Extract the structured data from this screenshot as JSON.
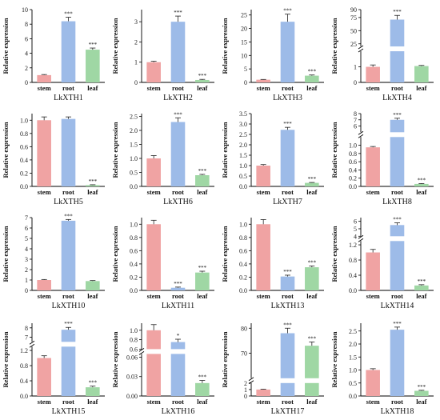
{
  "colors": {
    "stem": "#f0a3a3",
    "root": "#9dbbe8",
    "leaf": "#9fd7a4",
    "axis": "#000000"
  },
  "chart_data": [
    {
      "type": "bar",
      "title": "LkXTH1",
      "ylabel": "Relative expression",
      "categories": [
        "stem",
        "root",
        "leaf"
      ],
      "values": [
        1,
        8.4,
        4.5
      ],
      "errors": [
        0.08,
        0.55,
        0.22
      ],
      "significance": [
        "",
        "***",
        "***"
      ],
      "ylim": [
        0,
        10
      ],
      "yticks": [
        "0",
        "2",
        "4",
        "6",
        "8",
        "10"
      ],
      "tickvals": [
        0,
        2,
        4,
        6,
        8,
        10
      ]
    },
    {
      "type": "bar",
      "title": "LkXTH2",
      "ylabel": "Relative expression",
      "categories": [
        "stem",
        "root",
        "leaf"
      ],
      "values": [
        1,
        3.0,
        0.12
      ],
      "errors": [
        0.05,
        0.28,
        0.03
      ],
      "significance": [
        "",
        "***",
        "***"
      ],
      "ylim": [
        0,
        3.6
      ],
      "yticks": [
        "0",
        "1",
        "2",
        "3"
      ],
      "tickvals": [
        0,
        1,
        2,
        3
      ]
    },
    {
      "type": "bar",
      "title": "LkXTH3",
      "ylabel": "Relative expression",
      "categories": [
        "stem",
        "root",
        "leaf"
      ],
      "values": [
        1,
        22.5,
        2.5
      ],
      "errors": [
        0.1,
        2.8,
        0.25
      ],
      "significance": [
        "",
        "***",
        "***"
      ],
      "ylim": [
        0,
        27
      ],
      "yticks": [
        "0",
        "5",
        "10",
        "15",
        "20",
        "25"
      ],
      "tickvals": [
        0,
        5,
        10,
        15,
        20,
        25
      ]
    },
    {
      "type": "bar",
      "title": "LkXTH4",
      "ylabel": "Relative expression",
      "categories": [
        "stem",
        "root",
        "leaf"
      ],
      "values": [
        1,
        71,
        1.05
      ],
      "errors": [
        0.12,
        8,
        0.04
      ],
      "significance": [
        "",
        "***",
        ""
      ],
      "broken_axis": {
        "lower": [
          0,
          2
        ],
        "upper": [
          20,
          90
        ],
        "split": 0.45
      },
      "yticks": [
        "0",
        "1",
        "25",
        "50",
        "75",
        "90"
      ],
      "tickvals": [
        0,
        1,
        25,
        50,
        75,
        90
      ]
    },
    {
      "type": "bar",
      "title": "LkXTH5",
      "ylabel": "Relative expression",
      "categories": [
        "stem",
        "root",
        "leaf"
      ],
      "values": [
        1.0,
        1.02,
        0.02
      ],
      "errors": [
        0.05,
        0.03,
        0.005
      ],
      "significance": [
        "",
        "",
        "***"
      ],
      "ylim": [
        0,
        1.1
      ],
      "yticks": [
        "0.0",
        "0.2",
        "0.4",
        "0.6",
        "0.8",
        "1.0"
      ],
      "tickvals": [
        0,
        0.2,
        0.4,
        0.6,
        0.8,
        1.0
      ]
    },
    {
      "type": "bar",
      "title": "LkXTH6",
      "ylabel": "Relative expression",
      "categories": [
        "stem",
        "root",
        "leaf"
      ],
      "values": [
        1,
        2.3,
        0.4
      ],
      "errors": [
        0.1,
        0.15,
        0.03
      ],
      "significance": [
        "",
        "***",
        "***"
      ],
      "ylim": [
        0,
        2.6
      ],
      "yticks": [
        "0.0",
        "0.5",
        "1.0",
        "1.5",
        "2.0",
        "2.5"
      ],
      "tickvals": [
        0,
        0.5,
        1.0,
        1.5,
        2.0,
        2.5
      ]
    },
    {
      "type": "bar",
      "title": "LkXTH7",
      "ylabel": "Relative expression",
      "categories": [
        "stem",
        "root",
        "leaf"
      ],
      "values": [
        1,
        2.72,
        0.17
      ],
      "errors": [
        0.05,
        0.12,
        0.02
      ],
      "significance": [
        "",
        "***",
        "***"
      ],
      "ylim": [
        0,
        3.5
      ],
      "yticks": [
        "0.0",
        "0.5",
        "1.0",
        "1.5",
        "2.0",
        "2.5",
        "3.0",
        "3.5"
      ],
      "tickvals": [
        0,
        0.5,
        1.0,
        1.5,
        2.0,
        2.5,
        3.0,
        3.5
      ]
    },
    {
      "type": "bar",
      "title": "LkXTH8",
      "ylabel": "Relative expression",
      "categories": [
        "stem",
        "root",
        "leaf"
      ],
      "values": [
        0.95,
        7.0,
        0.06
      ],
      "errors": [
        0.02,
        0.25,
        0.01
      ],
      "significance": [
        "",
        "***",
        "***"
      ],
      "broken_axis": {
        "lower": [
          0,
          1.2
        ],
        "upper": [
          5,
          8
        ],
        "split": 0.7
      },
      "yticks": [
        "0.0",
        "0.2",
        "0.4",
        "0.6",
        "0.8",
        "1.0",
        "6",
        "7",
        "8"
      ],
      "tickvals": [
        0,
        0.2,
        0.4,
        0.6,
        0.8,
        1.0,
        6,
        7,
        8
      ]
    },
    {
      "type": "bar",
      "title": "LkXTH10",
      "ylabel": "Relative expression",
      "categories": [
        "stem",
        "root",
        "leaf"
      ],
      "values": [
        1,
        6.7,
        0.9
      ],
      "errors": [
        0.05,
        0.12,
        0.05
      ],
      "significance": [
        "",
        "***",
        ""
      ],
      "ylim": [
        0,
        7
      ],
      "yticks": [
        "0",
        "1",
        "2",
        "3",
        "4",
        "5",
        "6",
        "7"
      ],
      "tickvals": [
        0,
        1,
        2,
        3,
        4,
        5,
        6,
        7
      ]
    },
    {
      "type": "bar",
      "title": "LkXTH11",
      "ylabel": "Relative expression",
      "categories": [
        "stem",
        "root",
        "leaf"
      ],
      "values": [
        1,
        0.04,
        0.27
      ],
      "errors": [
        0.06,
        0.01,
        0.02
      ],
      "significance": [
        "",
        "***",
        "***"
      ],
      "ylim": [
        0,
        1.1
      ],
      "yticks": [
        "0.0",
        "0.2",
        "0.4",
        "0.6",
        "0.8",
        "1.0"
      ],
      "tickvals": [
        0,
        0.2,
        0.4,
        0.6,
        0.8,
        1.0
      ]
    },
    {
      "type": "bar",
      "title": "LkXTH13",
      "ylabel": "Relative expression",
      "categories": [
        "stem",
        "root",
        "leaf"
      ],
      "values": [
        1,
        0.21,
        0.35
      ],
      "errors": [
        0.07,
        0.02,
        0.02
      ],
      "significance": [
        "",
        "***",
        "***"
      ],
      "ylim": [
        0,
        1.1
      ],
      "yticks": [
        "0.0",
        "0.2",
        "0.4",
        "0.6",
        "0.8",
        "1.0"
      ],
      "tickvals": [
        0,
        0.2,
        0.4,
        0.6,
        0.8,
        1.0
      ]
    },
    {
      "type": "bar",
      "title": "LkXTH14",
      "ylabel": "Relative expression",
      "categories": [
        "stem",
        "root",
        "leaf"
      ],
      "values": [
        1,
        5.5,
        0.13
      ],
      "errors": [
        0.08,
        0.3,
        0.02
      ],
      "significance": [
        "",
        "***",
        "***"
      ],
      "broken_axis": {
        "lower": [
          0,
          1.3
        ],
        "upper": [
          4,
          6.5
        ],
        "split": 0.7
      },
      "yticks": [
        "0.0",
        "0.4",
        "0.8",
        "1.2",
        "4",
        "5",
        "6"
      ],
      "tickvals": [
        0,
        0.4,
        0.8,
        1.2,
        4,
        5,
        6
      ]
    },
    {
      "type": "bar",
      "title": "LkXTH15",
      "ylabel": "Relative expression",
      "categories": [
        "stem",
        "root",
        "leaf"
      ],
      "values": [
        1,
        7.8,
        0.23
      ],
      "errors": [
        0.06,
        0.25,
        0.03
      ],
      "significance": [
        "",
        "***",
        "***"
      ],
      "broken_axis": {
        "lower": [
          0,
          1.3
        ],
        "upper": [
          6.5,
          8.5
        ],
        "split": 0.7
      },
      "yticks": [
        "0.0",
        "0.4",
        "0.8",
        "1.2",
        "7",
        "8"
      ],
      "tickvals": [
        0,
        0.4,
        0.8,
        1.2,
        7,
        8
      ]
    },
    {
      "type": "bar",
      "title": "LkXTH16",
      "ylabel": "Relative expression",
      "categories": [
        "stem",
        "root",
        "leaf"
      ],
      "values": [
        1,
        0.75,
        0.02
      ],
      "errors": [
        0.12,
        0.06,
        0.004
      ],
      "significance": [
        "",
        "*",
        "***"
      ],
      "broken_axis": {
        "lower": [
          0,
          0.065
        ],
        "upper": [
          0.6,
          1.15
        ],
        "split": 0.6
      },
      "yticks": [
        "0.00",
        "0.03",
        "0.06",
        "0.6",
        "0.8",
        "1.0"
      ],
      "tickvals": [
        0,
        0.03,
        0.06,
        0.6,
        0.8,
        1.0
      ]
    },
    {
      "type": "bar",
      "title": "LkXTH17",
      "ylabel": "Relative expression",
      "categories": [
        "stem",
        "root",
        "leaf"
      ],
      "values": [
        1,
        78,
        73
      ],
      "errors": [
        0.05,
        2,
        1.5
      ],
      "significance": [
        "",
        "***",
        "***"
      ],
      "broken_axis": {
        "lower": [
          0,
          2
        ],
        "upper": [
          60,
          82
        ],
        "split": 0.2
      },
      "yticks": [
        "0",
        "1",
        "2",
        "70",
        "80"
      ],
      "tickvals": [
        0,
        1,
        2,
        70,
        80
      ]
    },
    {
      "type": "bar",
      "title": "LkXTH18",
      "ylabel": "Relative expression",
      "categories": [
        "stem",
        "root",
        "leaf"
      ],
      "values": [
        1,
        2.55,
        0.2
      ],
      "errors": [
        0.05,
        0.1,
        0.02
      ],
      "significance": [
        "",
        "***",
        "***"
      ],
      "ylim": [
        0,
        2.8
      ],
      "yticks": [
        "0.0",
        "0.5",
        "1.0",
        "1.5",
        "2.0",
        "2.5"
      ],
      "tickvals": [
        0,
        0.5,
        1.0,
        1.5,
        2.0,
        2.5
      ]
    }
  ]
}
